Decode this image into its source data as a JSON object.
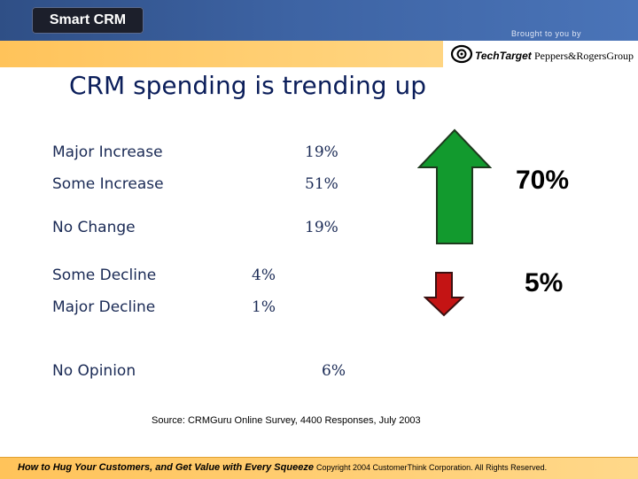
{
  "header": {
    "logo": "Smart CRM",
    "brought_by": "Brought to you by",
    "sponsors": [
      "TechTarget",
      "Peppers&RogersGroup"
    ]
  },
  "title": "CRM spending is trending up",
  "rows": [
    {
      "label": "Major Increase",
      "value": "19%"
    },
    {
      "label": "Some Increase",
      "value": "51%"
    },
    {
      "label": "No Change",
      "value": "19%"
    },
    {
      "label": "Some Decline",
      "value": "4%"
    },
    {
      "label": "Major Decline",
      "value": "1%"
    },
    {
      "label": "No Opinion",
      "value": "6%"
    }
  ],
  "summary": {
    "increase_total": "70%",
    "decline_total": "5%",
    "increase_color": "#129a2e",
    "decline_color": "#c41414"
  },
  "source": "Source: CRMGuru Online Survey, 4400 Responses, July 2003",
  "footer": {
    "tagline": "How to Hug Your Customers, and Get Value with Every Squeeze",
    "copyright": "Copyright 2004 CustomerThink Corporation. All Rights Reserved."
  }
}
